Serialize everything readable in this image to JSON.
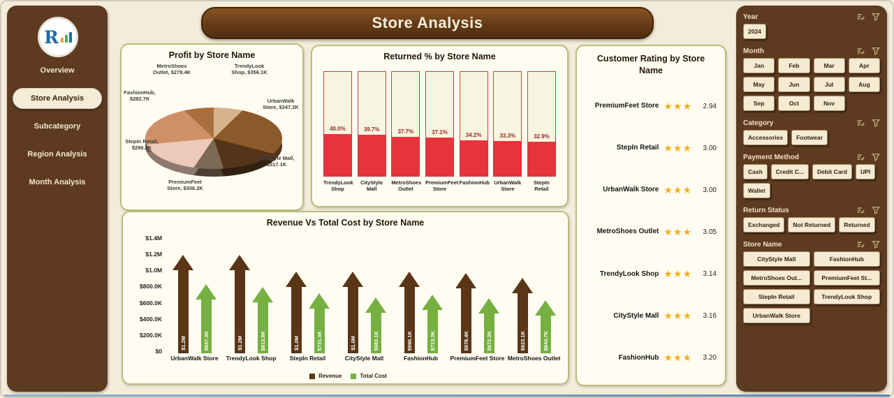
{
  "app": {
    "title": "Store Analysis"
  },
  "sidebar": {
    "logo_letter": "R",
    "items": [
      {
        "label": "Overview",
        "active": false
      },
      {
        "label": "Store Analysis",
        "active": true
      },
      {
        "label": "Subcategory",
        "active": false
      },
      {
        "label": "Region Analysis",
        "active": false
      },
      {
        "label": "Month Analysis",
        "active": false
      }
    ]
  },
  "chart_data": [
    {
      "type": "pie",
      "title": "Profit by Store Name",
      "labels": [
        "MetroShoes Outlet",
        "TrendyLook Shop",
        "UrbanWalk Store",
        "CityStyle Mall",
        "PremiumFeet Store",
        "StepIn Retail",
        "FashionHub"
      ],
      "values_k": [
        278.4,
        356.1,
        347.2,
        317.1,
        306.2,
        296.2,
        282.7
      ],
      "value_labels": [
        "$278.4K",
        "$356.1K",
        "$347.2K",
        "$317.1K",
        "$306.2K",
        "$296.2K",
        "$282.7K"
      ],
      "colors": [
        "#d9b38c",
        "#8a5a2b",
        "#54351a",
        "#7d6a55",
        "#ecc9b8",
        "#cf9068",
        "#a96f3c"
      ]
    },
    {
      "type": "bar",
      "title": "Returned % by Store Name",
      "categories": [
        "TrendyLook Shop",
        "CityStyle Mall",
        "MetroShoes Outlet",
        "PremiumFeet Store",
        "FashionHub",
        "UrbanWalk Store",
        "StepIn Retail"
      ],
      "values": [
        40.0,
        39.7,
        37.7,
        37.1,
        34.2,
        33.3,
        32.9
      ],
      "value_labels": [
        "40.0%",
        "39.7%",
        "37.7%",
        "37.1%",
        "34.2%",
        "33.3%",
        "32.9%"
      ],
      "ylim": [
        0,
        100
      ],
      "bar_color": "#e8323c"
    },
    {
      "type": "bar",
      "title": "Revenue Vs Total Cost by Store Name",
      "categories": [
        "UrbanWalk Store",
        "TrendyLook Shop",
        "StepIn Retail",
        "CityStyle Mall",
        "FashionHub",
        "PremiumFeet Store",
        "MetroShoes Outlet"
      ],
      "series": [
        {
          "name": "Revenue",
          "color": "#5a3516",
          "values_k": [
            1200,
            1200,
            1000,
            1000,
            996.1,
            978.4,
            923.1
          ],
          "labels": [
            "$1.2M",
            "$1.2M",
            "$1.0M",
            "$1.0M",
            "$996.1K",
            "$978.4K",
            "$923.1K"
          ]
        },
        {
          "name": "Total Cost",
          "color": "#76b041",
          "values_k": [
            847.3,
            813.8,
            731.3,
            683.1,
            713.3,
            672.3,
            644.7
          ],
          "labels": [
            "$847.3K",
            "$813.8K",
            "$731.3K",
            "$683.1K",
            "$713.3K",
            "$672.3K",
            "$644.7K"
          ]
        }
      ],
      "y_ticks": [
        "$1.4M",
        "$1.2M",
        "$1.0M",
        "$800.0K",
        "$600.0K",
        "$400.0K",
        "$200.0K",
        "$0"
      ],
      "ylim_k": [
        0,
        1400
      ],
      "legend_position": "bottom"
    },
    {
      "type": "table",
      "title": "Customer Rating by Store Name",
      "rows": [
        {
          "store": "PremiumFeet Store",
          "rating": "2.94",
          "stars": 3
        },
        {
          "store": "StepIn Retail",
          "rating": "3.00",
          "stars": 3
        },
        {
          "store": "UrbanWalk Store",
          "rating": "3.00",
          "stars": 3
        },
        {
          "store": "MetroShoes Outlet",
          "rating": "3.05",
          "stars": 3
        },
        {
          "store": "TrendyLook Shop",
          "rating": "3.14",
          "stars": 3
        },
        {
          "store": "CityStyle Mall",
          "rating": "3.16",
          "stars": 3
        },
        {
          "store": "FashionHub",
          "rating": "3.20",
          "stars": 3
        }
      ],
      "star_color": "#f2b01e"
    }
  ],
  "filters": {
    "sections": [
      {
        "label": "Year",
        "options": [
          "2024"
        ]
      },
      {
        "label": "Month",
        "options": [
          "Jan",
          "Feb",
          "Mar",
          "Apr",
          "May",
          "Jun",
          "Jul",
          "Aug",
          "Sep",
          "Oct",
          "Nov"
        ]
      },
      {
        "label": "Category",
        "options": [
          "Accessories",
          "Footwear"
        ]
      },
      {
        "label": "Payment Method",
        "options": [
          "Cash",
          "Credit C...",
          "Debit Card",
          "UPI",
          "Wallet"
        ]
      },
      {
        "label": "Return Status",
        "options": [
          "Exchanged",
          "Not Returned",
          "Returned"
        ]
      },
      {
        "label": "Store Name",
        "options": [
          "CityStyle Mall",
          "FashionHub",
          "MetroShoes Out...",
          "PremiumFeet St...",
          "StepIn Retail",
          "TrendyLook Shop",
          "UrbanWalk Store"
        ]
      }
    ]
  },
  "colors": {
    "sidebar_bg": "#5d3a20",
    "accent_red": "#e8323c",
    "revenue_brown": "#5a3516",
    "cost_green": "#76b041",
    "star_gold": "#f2b01e"
  }
}
